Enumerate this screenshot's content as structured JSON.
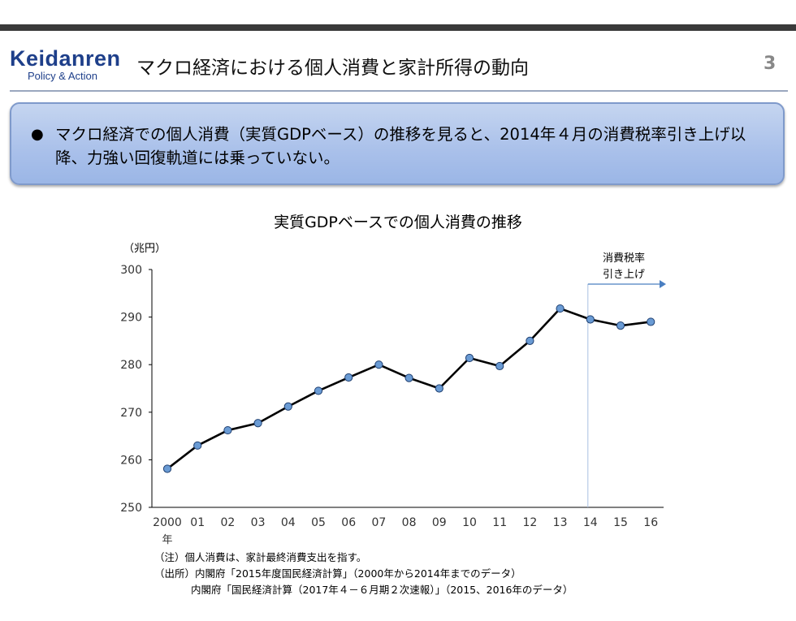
{
  "header": {
    "logo_main": "Keidanren",
    "logo_sub": "Policy & Action",
    "title": "マクロ経済における個人消費と家計所得の動向",
    "page_number": "3"
  },
  "summary": {
    "bullet": "●",
    "text": "マクロ経済での個人消費（実質GDPベース）の推移を見ると、2014年４月の消費税率引き上げ以降、力強い回復軌道には乗っていない。"
  },
  "chart_data": {
    "type": "line",
    "title": "実質GDPベースでの個人消費の推移",
    "ylabel": "（兆円）",
    "xlabel": "",
    "x_unit_label": "年",
    "categories": [
      "2000",
      "01",
      "02",
      "03",
      "04",
      "05",
      "06",
      "07",
      "08",
      "09",
      "10",
      "11",
      "12",
      "13",
      "14",
      "15",
      "16"
    ],
    "series": [
      {
        "values": [
          258.1,
          263.0,
          266.2,
          267.7,
          271.2,
          274.5,
          277.3,
          280.0,
          277.2,
          275.0,
          281.4,
          279.7,
          285.0,
          291.8,
          289.5,
          288.2,
          289.0
        ]
      }
    ],
    "ylim": [
      250,
      300
    ],
    "yticks": [
      250,
      260,
      270,
      280,
      290,
      300
    ],
    "grid": false,
    "annotation": {
      "category": "14",
      "label_lines": [
        "消費税率",
        "引き上げ"
      ]
    },
    "colors": {
      "line": "#000000",
      "marker_fill": "#6a9bd4",
      "marker_stroke": "#1f3f70",
      "annotation": "#4a7fc1"
    }
  },
  "notes": [
    "（注）個人消費は、家計最終消費支出を指す。",
    "（出所）内閣府「2015年度国民経済計算」（2000年から2014年までのデータ）",
    "内閣府「国民経済計算（2017年４－６月期２次速報）」（2015、2016年のデータ）"
  ]
}
